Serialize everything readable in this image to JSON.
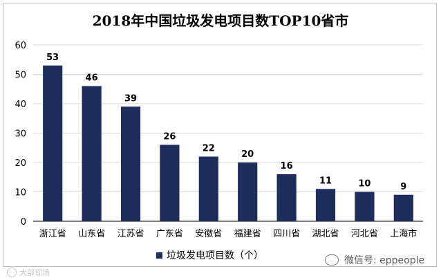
{
  "chart_data": {
    "type": "bar",
    "title": "2018年中国垃圾发电项目数TOP10省市",
    "categories": [
      "浙江省",
      "山东省",
      "江苏省",
      "广东省",
      "安徽省",
      "福建省",
      "四川省",
      "湖北省",
      "河北省",
      "上海市"
    ],
    "series": [
      {
        "name": "垃圾发电项目数（个）",
        "values": [
          53,
          46,
          39,
          26,
          22,
          20,
          16,
          11,
          10,
          9
        ]
      }
    ],
    "ylim": [
      0,
      60
    ],
    "yticks": [
      0,
      10,
      20,
      30,
      40,
      50,
      60
    ],
    "grid": true,
    "legend": "bottom",
    "colors": {
      "bar": "#1f2d5c",
      "grid": "#d9d9d9",
      "axis": "#000000"
    }
  },
  "watermark": {
    "left": "大部现场",
    "right": "微信号: eppeople"
  }
}
